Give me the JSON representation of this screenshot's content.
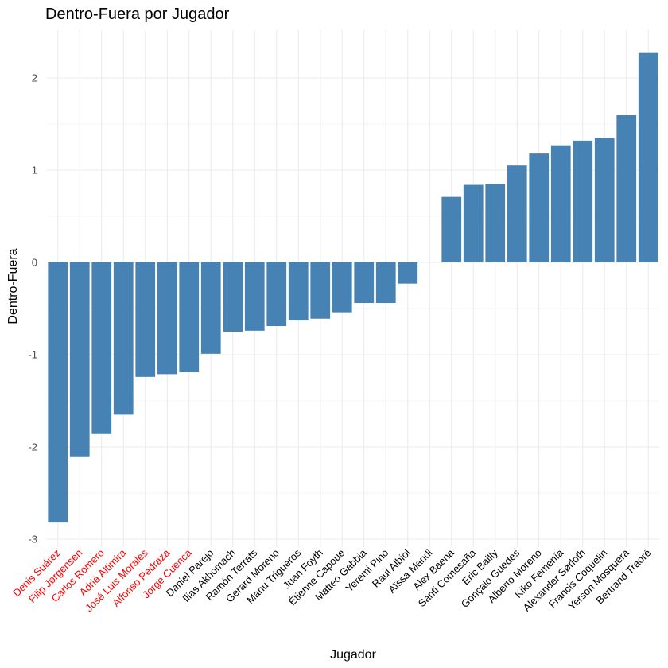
{
  "chart_data": {
    "type": "bar",
    "title": "Dentro-Fuera por Jugador",
    "xlabel": "Jugador",
    "ylabel": "Dentro-Fuera",
    "ylim": [
      -3,
      2.4
    ],
    "yticks": [
      -3,
      -2,
      -1,
      0,
      1,
      2
    ],
    "grid": true,
    "bar_color": "#4682B4",
    "highlight_label_color": "#FF0000",
    "default_label_color": "#000000",
    "categories": [
      "Denis Suárez",
      "Filip Jørgensen",
      "Carlos Romero",
      "Adrià Altimira",
      "José Luis Morales",
      "Alfonso Pedraza",
      "Jorge Cuenca",
      "Daniel Parejo",
      "Ilias Akhomach",
      "Ramón Terrats",
      "Gerard Moreno",
      "Manu Trigueros",
      "Juan Foyth",
      "Étienne Capoue",
      "Matteo Gabbia",
      "Yeremi Pino",
      "Raúl Albiol",
      "Aïssa Mandi",
      "Alex Baena",
      "Santi Comesaña",
      "Eric Bailly",
      "Gonçalo Guedes",
      "Alberto Moreno",
      "Kiko Femenía",
      "Alexander Sørloth",
      "Francis Coquelin",
      "Yerson Mosquera",
      "Bertrand Traoré"
    ],
    "values": [
      -2.82,
      -2.11,
      -1.86,
      -1.65,
      -1.24,
      -1.21,
      -1.19,
      -0.99,
      -0.75,
      -0.74,
      -0.69,
      -0.63,
      -0.61,
      -0.54,
      -0.44,
      -0.44,
      -0.23,
      0.0,
      0.71,
      0.84,
      0.85,
      1.05,
      1.18,
      1.27,
      1.32,
      1.35,
      1.6,
      2.27
    ],
    "highlighted": [
      "Denis Suárez",
      "Filip Jørgensen",
      "Carlos Romero",
      "Adrià Altimira",
      "José Luis Morales",
      "Alfonso Pedraza",
      "Jorge Cuenca"
    ]
  }
}
